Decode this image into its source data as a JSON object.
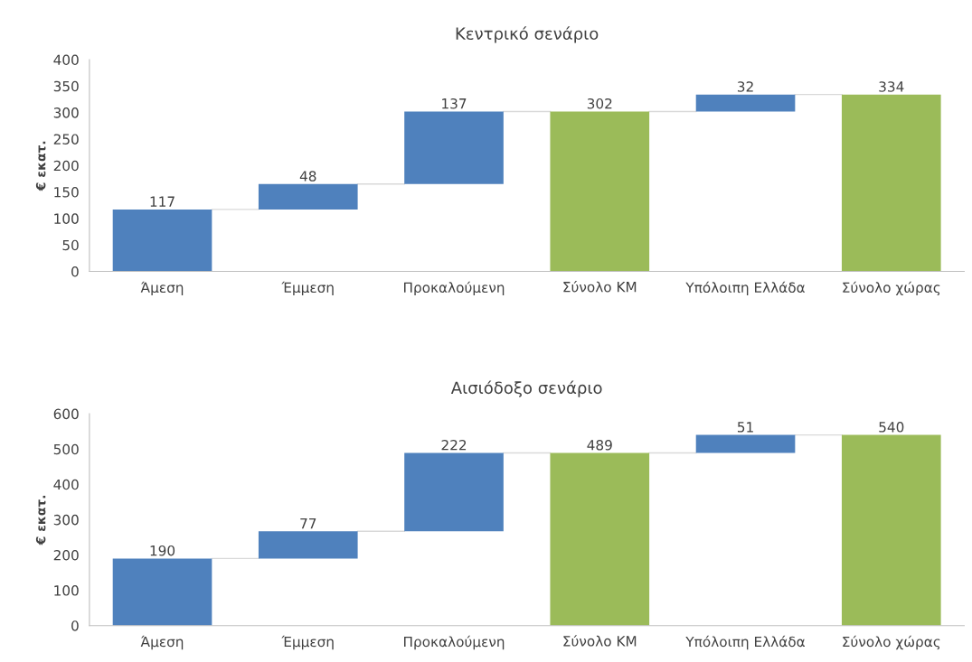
{
  "chart_data": [
    {
      "type": "bar",
      "title": "Κεντρικό σενάριο",
      "ylabel": "€ εκατ.",
      "categories": [
        "Άμεση",
        "Έμμεση",
        "Προκαλούμενη",
        "Σύνολο ΚΜ",
        "Υπόλοιπη Ελλάδα",
        "Σύνολο χώρας"
      ],
      "values": [
        117,
        48,
        137,
        302,
        32,
        334
      ],
      "base": [
        0,
        117,
        165,
        0,
        302,
        0
      ],
      "colors": [
        "#4f81bd",
        "#4f81bd",
        "#4f81bd",
        "#9bbb59",
        "#4f81bd",
        "#9bbb59"
      ],
      "ylim": [
        0,
        400
      ],
      "yticks": [
        0,
        50,
        100,
        150,
        200,
        250,
        300,
        350,
        400
      ],
      "data_labels": true,
      "grid": false,
      "legend": false
    },
    {
      "type": "bar",
      "title": "Αισιόδοξο σενάριο",
      "ylabel": "€ εκατ.",
      "categories": [
        "Άμεση",
        "Έμμεση",
        "Προκαλούμενη",
        "Σύνολο ΚΜ",
        "Υπόλοιπη Ελλάδα",
        "Σύνολο χώρας"
      ],
      "values": [
        190,
        77,
        222,
        489,
        51,
        540
      ],
      "base": [
        0,
        190,
        267,
        0,
        489,
        0
      ],
      "colors": [
        "#4f81bd",
        "#4f81bd",
        "#4f81bd",
        "#9bbb59",
        "#4f81bd",
        "#9bbb59"
      ],
      "ylim": [
        0,
        600
      ],
      "yticks": [
        0,
        100,
        200,
        300,
        400,
        500,
        600
      ],
      "data_labels": true,
      "grid": false,
      "legend": false
    }
  ]
}
